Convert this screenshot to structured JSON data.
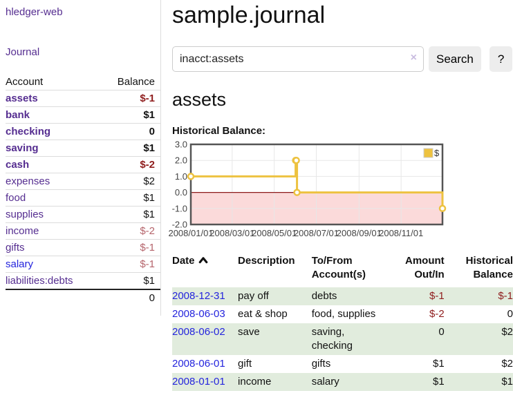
{
  "colors": {
    "link_purple": "#552d90",
    "link_blue": "#2424dd",
    "negative_strong": "#8f1d1d",
    "negative_soft": "#b5646b",
    "row_highlight_green": "#e1ecdd",
    "series_gold": "#EDC240"
  },
  "sidebar": {
    "brand": "hledger-web",
    "journal_link": "Journal",
    "accounts_table": {
      "account_header": "Account",
      "balance_header": "Balance",
      "rows": [
        {
          "label": "assets",
          "indent": 1,
          "emph": true,
          "balance": "$-1",
          "balance_tone": "neg-strong"
        },
        {
          "label": "bank",
          "indent": 2,
          "emph": true,
          "balance": "$1",
          "balance_tone": "pos"
        },
        {
          "label": "checking",
          "indent": 3,
          "emph": true,
          "balance": "0",
          "balance_tone": "pos"
        },
        {
          "label": "saving",
          "indent": 3,
          "emph": true,
          "balance": "$1",
          "balance_tone": "pos"
        },
        {
          "label": "cash",
          "indent": 2,
          "emph": true,
          "balance": "$-2",
          "balance_tone": "neg-strong"
        },
        {
          "label": "expenses",
          "indent": 1,
          "emph": false,
          "balance": "$2",
          "balance_tone": "pos"
        },
        {
          "label": "food",
          "indent": 2,
          "emph": false,
          "balance": "$1",
          "balance_tone": "pos"
        },
        {
          "label": "supplies",
          "indent": 2,
          "emph": false,
          "balance": "$1",
          "balance_tone": "pos"
        },
        {
          "label": "income",
          "indent": 1,
          "emph": false,
          "balance": "$-2",
          "balance_tone": "neg-soft"
        },
        {
          "label": "gifts",
          "indent": 2,
          "emph": false,
          "balance": "$-1",
          "balance_tone": "neg-soft"
        },
        {
          "label": "salary",
          "indent": 2,
          "emph": false,
          "link_tone": "blue",
          "balance": "$-1",
          "balance_tone": "neg-soft"
        },
        {
          "label": "liabilities:debts",
          "indent": 1,
          "emph": false,
          "balance": "$1",
          "balance_tone": "pos"
        }
      ],
      "total": "0"
    }
  },
  "main": {
    "title": "sample.journal",
    "search": {
      "value": "inacct:assets",
      "clear_icon": "×",
      "search_button": "Search",
      "help_button": "?"
    },
    "account_heading": "assets",
    "chart_title": "Historical Balance:",
    "register_table": {
      "headers": {
        "date": "Date",
        "sort_icon": "chevron-up",
        "description": "Description",
        "accounts": "To/From Account(s)",
        "amount": "Amount Out/In",
        "balance": "Historical Balance"
      },
      "rows": [
        {
          "date": "2008-12-31",
          "description": "pay off",
          "accounts": "debts",
          "amount": "$-1",
          "amount_tone": "neg",
          "balance": "$-1",
          "balance_tone": "neg",
          "shaded": true
        },
        {
          "date": "2008-06-03",
          "description": "eat & shop",
          "accounts": "food, supplies",
          "amount": "$-2",
          "amount_tone": "neg",
          "balance": "0",
          "balance_tone": "pos",
          "shaded": false
        },
        {
          "date": "2008-06-02",
          "description": "save",
          "accounts": "saving, checking",
          "amount": "0",
          "amount_tone": "pos",
          "balance": "$2",
          "balance_tone": "pos",
          "shaded": true
        },
        {
          "date": "2008-06-01",
          "description": "gift",
          "accounts": "gifts",
          "amount": "$1",
          "amount_tone": "pos",
          "balance": "$2",
          "balance_tone": "pos",
          "shaded": false
        },
        {
          "date": "2008-01-01",
          "description": "income",
          "accounts": "salary",
          "amount": "$1",
          "amount_tone": "pos",
          "balance": "$1",
          "balance_tone": "pos",
          "shaded": true
        }
      ]
    }
  },
  "chart_data": {
    "type": "line",
    "title": "Historical Balance",
    "line_mode": "step-after",
    "x_range": [
      "2008-01-01",
      "2008-12-31"
    ],
    "y_range": [
      -2,
      3
    ],
    "x_ticks": [
      "2008/01/01",
      "2008/03/01",
      "2008/05/01",
      "2008/07/01",
      "2008/09/01",
      "2008/11/01"
    ],
    "y_ticks": [
      "3.0",
      "2.0",
      "1.0",
      "0.0",
      "-1.0",
      "-2.0"
    ],
    "series": [
      {
        "name": "$",
        "color": "#EDC240",
        "points": [
          [
            "2008-01-01",
            1
          ],
          [
            "2008-06-01",
            2
          ],
          [
            "2008-06-02",
            2
          ],
          [
            "2008-06-03",
            0
          ],
          [
            "2008-12-31",
            -1
          ]
        ]
      }
    ],
    "legend": {
      "label": "$",
      "position": "top-right"
    },
    "grid": true,
    "negative_region_color": "#fbdada",
    "zero_line_color": "#8b1a1a",
    "plot_border_color": "#545454",
    "gridline_color": "#e7e7e7"
  }
}
